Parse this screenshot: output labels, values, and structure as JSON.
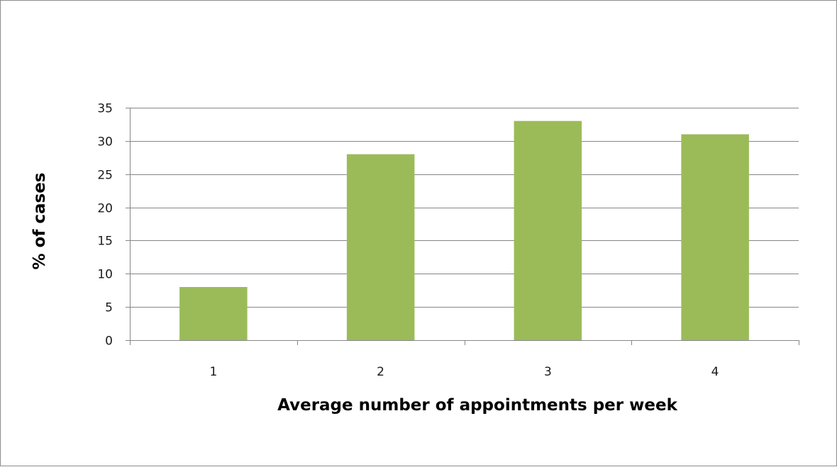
{
  "chart_data": {
    "type": "bar",
    "categories": [
      "1",
      "2",
      "3",
      "4"
    ],
    "values": [
      8,
      28,
      33,
      31
    ],
    "xlabel": "Average number of appointments per week",
    "ylabel": "% of cases",
    "ylim": [
      0,
      35
    ],
    "y_ticks": [
      "0",
      "5",
      "10",
      "15",
      "20",
      "25",
      "30",
      "35"
    ],
    "y_tick_values": [
      0,
      5,
      10,
      15,
      20,
      25,
      30,
      35
    ],
    "grid": true,
    "legend": "none",
    "bar_color": "#9bbb59",
    "grid_color": "#868686"
  }
}
